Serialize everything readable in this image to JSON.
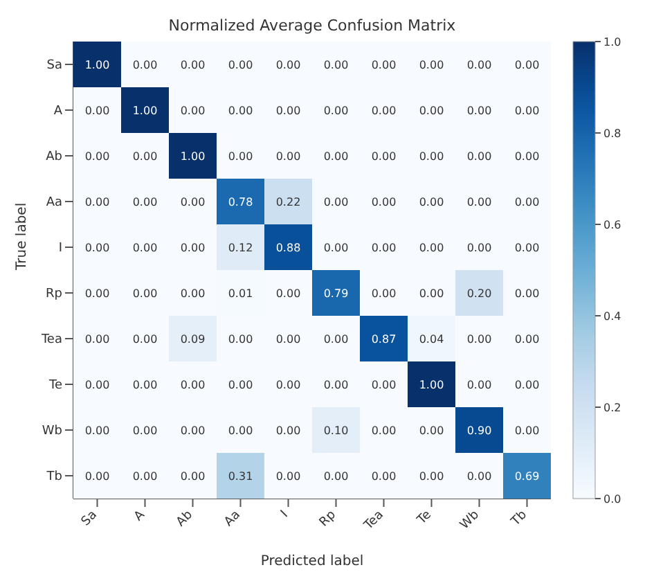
{
  "chart_data": {
    "type": "heatmap",
    "title": "Normalized Average Confusion Matrix",
    "xlabel": "Predicted label",
    "ylabel": "True label",
    "categories": [
      "Sa",
      "A",
      "Ab",
      "Aa",
      "I",
      "Rp",
      "Tea",
      "Te",
      "Wb",
      "Tb"
    ],
    "y_categories": [
      "Sa",
      "A",
      "Ab",
      "Aa",
      "I",
      "Rp",
      "Tea",
      "Te",
      "Wb",
      "Tb"
    ],
    "cells": [
      [
        1.0,
        0.0,
        0.0,
        0.0,
        0.0,
        0.0,
        0.0,
        0.0,
        0.0,
        0.0
      ],
      [
        0.0,
        1.0,
        0.0,
        0.0,
        0.0,
        0.0,
        0.0,
        0.0,
        0.0,
        0.0
      ],
      [
        0.0,
        0.0,
        1.0,
        0.0,
        0.0,
        0.0,
        0.0,
        0.0,
        0.0,
        0.0
      ],
      [
        0.0,
        0.0,
        0.0,
        0.78,
        0.22,
        0.0,
        0.0,
        0.0,
        0.0,
        0.0
      ],
      [
        0.0,
        0.0,
        0.0,
        0.12,
        0.88,
        0.0,
        0.0,
        0.0,
        0.0,
        0.0
      ],
      [
        0.0,
        0.0,
        0.0,
        0.01,
        0.0,
        0.79,
        0.0,
        0.0,
        0.2,
        0.0
      ],
      [
        0.0,
        0.0,
        0.09,
        0.0,
        0.0,
        0.0,
        0.87,
        0.04,
        0.0,
        0.0
      ],
      [
        0.0,
        0.0,
        0.0,
        0.0,
        0.0,
        0.0,
        0.0,
        1.0,
        0.0,
        0.0
      ],
      [
        0.0,
        0.0,
        0.0,
        0.0,
        0.0,
        0.1,
        0.0,
        0.0,
        0.9,
        0.0
      ],
      [
        0.0,
        0.0,
        0.0,
        0.31,
        0.0,
        0.0,
        0.0,
        0.0,
        0.0,
        0.69
      ]
    ],
    "cell_labels": [
      [
        "1.00",
        "0.00",
        "0.00",
        "0.00",
        "0.00",
        "0.00",
        "0.00",
        "0.00",
        "0.00",
        "0.00"
      ],
      [
        "0.00",
        "1.00",
        "0.00",
        "0.00",
        "0.00",
        "0.00",
        "0.00",
        "0.00",
        "0.00",
        "0.00"
      ],
      [
        "0.00",
        "0.00",
        "1.00",
        "0.00",
        "0.00",
        "0.00",
        "0.00",
        "0.00",
        "0.00",
        "0.00"
      ],
      [
        "0.00",
        "0.00",
        "0.00",
        "0.78",
        "0.22",
        "0.00",
        "0.00",
        "0.00",
        "0.00",
        "0.00"
      ],
      [
        "0.00",
        "0.00",
        "0.00",
        "0.12",
        "0.88",
        "0.00",
        "0.00",
        "0.00",
        "0.00",
        "0.00"
      ],
      [
        "0.00",
        "0.00",
        "0.00",
        "0.01",
        "0.00",
        "0.79",
        "0.00",
        "0.00",
        "0.20",
        "0.00"
      ],
      [
        "0.00",
        "0.00",
        "0.09",
        "0.00",
        "0.00",
        "0.00",
        "0.87",
        "0.04",
        "0.00",
        "0.00"
      ],
      [
        "0.00",
        "0.00",
        "0.00",
        "0.00",
        "0.00",
        "0.00",
        "0.00",
        "1.00",
        "0.00",
        "0.00"
      ],
      [
        "0.00",
        "0.00",
        "0.00",
        "0.00",
        "0.00",
        "0.10",
        "0.00",
        "0.00",
        "0.90",
        "0.00"
      ],
      [
        "0.00",
        "0.00",
        "0.00",
        "0.31",
        "0.00",
        "0.00",
        "0.00",
        "0.00",
        "0.00",
        "0.69"
      ]
    ],
    "clim": [
      0,
      1
    ],
    "cticks": [
      {
        "value": 0,
        "label": "0.0"
      },
      {
        "value": 0.2,
        "label": "0.2"
      },
      {
        "value": 0.4,
        "label": "0.4"
      },
      {
        "value": 0.6,
        "label": "0.6"
      },
      {
        "value": 0.8,
        "label": "0.8"
      },
      {
        "value": 1,
        "label": "1.0"
      }
    ]
  }
}
